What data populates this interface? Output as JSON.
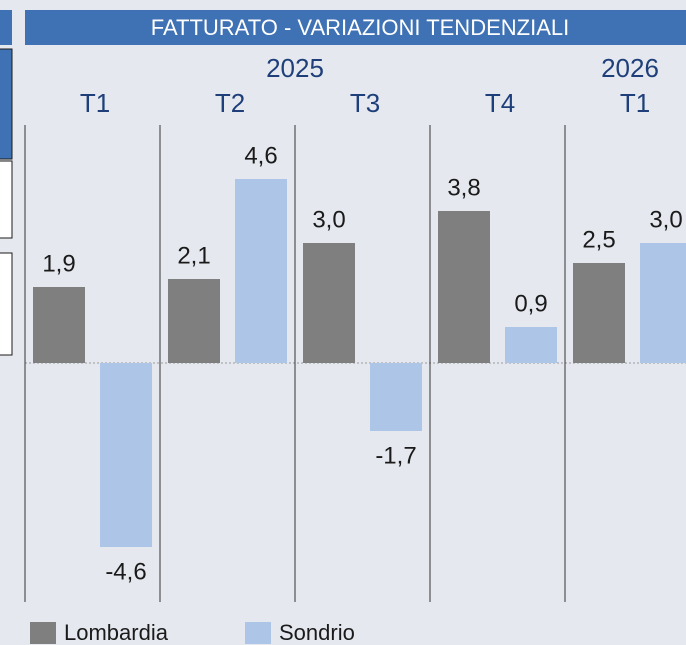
{
  "chart_data": {
    "type": "bar",
    "title": "FATTURATO - VARIAZIONI TENDENZIALI",
    "years": [
      "2025",
      "2026"
    ],
    "categories": [
      "T1",
      "T2",
      "T3",
      "T4",
      "T1"
    ],
    "series": [
      {
        "name": "Lombardia",
        "color": "#7f7f7f",
        "values": [
          1.9,
          2.1,
          3.0,
          3.8,
          2.5
        ],
        "value_labels": [
          "1,9",
          "2,1",
          "3,0",
          "3,8",
          "2,5"
        ]
      },
      {
        "name": "Sondrio",
        "color": "#adc6e8",
        "values": [
          -4.6,
          4.6,
          -1.7,
          0.9,
          3.0
        ],
        "value_labels": [
          "-4,6",
          "4,6",
          "-1,7",
          "0,9",
          "3,0"
        ]
      }
    ]
  }
}
